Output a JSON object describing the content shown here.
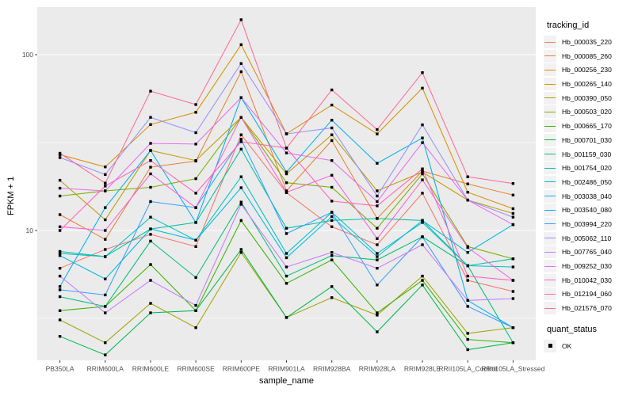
{
  "chart_data": {
    "type": "line",
    "title": "",
    "xlabel": "sample_name",
    "ylabel": "FPKM + 1",
    "y_scale": "log10",
    "ylim": [
      1.8,
      190
    ],
    "y_major_ticks": [
      10,
      100
    ],
    "y_major_tick_labels": [
      "10",
      "100"
    ],
    "y_minor_gridlines": [
      3.162,
      31.62
    ],
    "grid": "on",
    "legend_position": "right",
    "panel_background": "#EBEBEB",
    "gridline_color": "#FFFFFF",
    "axis_text_color": "#4D4D4D",
    "tick_color": "#333333",
    "point_color": "#000000",
    "point_shape": "square",
    "categories": [
      "PB350LA",
      "RRIM600LA",
      "RRIM600LE",
      "RRIM600SE",
      "RRIM600PE",
      "RRIM901LA",
      "RRIM928BA",
      "RRIM928LA",
      "RRIM928LE",
      "RRII105LA_Control",
      "RRII105LA_Stressed"
    ],
    "series": [
      {
        "name": "Hb_000035_220",
        "color": "#F8766D",
        "values": [
          6.1,
          7.8,
          9.5,
          8.1,
          35,
          16.4,
          10.5,
          8.3,
          16.3,
          5.2,
          4.5
        ]
      },
      {
        "name": "Hb_000085_260",
        "color": "#EA8331",
        "values": [
          12.3,
          8.9,
          22.9,
          24.8,
          80,
          16.8,
          32.5,
          11.7,
          21.8,
          18.4,
          15.9
        ]
      },
      {
        "name": "Hb_000256_230",
        "color": "#D89000",
        "values": [
          27,
          23,
          40,
          47,
          114,
          35.5,
          51.7,
          35.4,
          64.5,
          16.5,
          13.3
        ]
      },
      {
        "name": "Hb_000265_140",
        "color": "#C09B00",
        "values": [
          19.3,
          11.5,
          28.5,
          25,
          44,
          21,
          35,
          16.8,
          21.5,
          14.9,
          12.5
        ]
      },
      {
        "name": "Hb_000390_050",
        "color": "#A3A500",
        "values": [
          3.1,
          2.3,
          3.85,
          2.8,
          7.5,
          3.2,
          4.15,
          3.3,
          5.5,
          2.6,
          2.8
        ]
      },
      {
        "name": "Hb_000503_020",
        "color": "#7CAE00",
        "values": [
          15.7,
          16.8,
          17.6,
          19.7,
          44,
          18.7,
          17.6,
          10.3,
          21,
          8.1,
          6.9
        ]
      },
      {
        "name": "Hb_000665_170",
        "color": "#39B600",
        "values": [
          3.5,
          3.7,
          6.4,
          3.5,
          11.4,
          5.0,
          6.8,
          3.4,
          5.2,
          2.4,
          2.3
        ]
      },
      {
        "name": "Hb_000701_030",
        "color": "#00BB4E",
        "values": [
          2.5,
          1.96,
          3.4,
          3.5,
          7.8,
          3.2,
          4.8,
          2.65,
          4.9,
          2.1,
          2.3
        ]
      },
      {
        "name": "Hb_001159_030",
        "color": "#00BF7D",
        "values": [
          4.2,
          3.7,
          8.7,
          5.4,
          14.5,
          5.5,
          7.2,
          6.8,
          9.2,
          6.3,
          2.3
        ]
      },
      {
        "name": "Hb_001754_020",
        "color": "#00C1A3",
        "values": [
          7.6,
          7.1,
          10.2,
          11.1,
          29,
          10.3,
          11.4,
          11.7,
          11.4,
          6.3,
          6.9
        ]
      },
      {
        "name": "Hb_002486_050",
        "color": "#00BFC4",
        "values": [
          7.4,
          7.1,
          11.9,
          8.8,
          20.2,
          7.4,
          12.7,
          7.4,
          11.1,
          6.3,
          6.2
        ]
      },
      {
        "name": "Hb_003038_040",
        "color": "#00BAE0",
        "values": [
          7.2,
          5.3,
          10.2,
          8.8,
          17.5,
          7.0,
          12.0,
          7.1,
          11.4,
          7.5,
          10.8
        ]
      },
      {
        "name": "Hb_003540_080",
        "color": "#00B0F6",
        "values": [
          4.8,
          13.5,
          28.5,
          11.1,
          57,
          21.5,
          42.4,
          24.1,
          33.6,
          4.0,
          2.8
        ]
      },
      {
        "name": "Hb_003994_220",
        "color": "#35A2FF",
        "values": [
          4.6,
          4.3,
          14.6,
          13.5,
          33,
          9.6,
          12.7,
          4.9,
          9.2,
          3.7,
          2.8
        ]
      },
      {
        "name": "Hb_005062_110",
        "color": "#9590FF",
        "values": [
          26,
          20.8,
          44,
          36,
          89,
          35.4,
          38.3,
          15.7,
          39.9,
          14.9,
          11.9
        ]
      },
      {
        "name": "Hb_007765_040",
        "color": "#C77CFF",
        "values": [
          5.5,
          3.4,
          5.2,
          3.75,
          14.1,
          6.2,
          7.5,
          6.1,
          8.3,
          4.0,
          4.1
        ]
      },
      {
        "name": "Hb_009252_030",
        "color": "#E76BF3",
        "values": [
          17.4,
          16.8,
          31.3,
          31,
          57,
          27.6,
          25,
          14.6,
          31.6,
          14.9,
          10.8
        ]
      },
      {
        "name": "Hb_010042_030",
        "color": "#FA62DB",
        "values": [
          10.5,
          10,
          21,
          13.5,
          44,
          16.5,
          20.6,
          9.0,
          19.4,
          8.0,
          5.2
        ]
      },
      {
        "name": "Hb_012194_060",
        "color": "#FF62BC",
        "values": [
          10,
          17.9,
          25,
          16.3,
          32,
          29.4,
          14.7,
          13.8,
          22.4,
          5.5,
          5.2
        ]
      },
      {
        "name": "Hb_021576_070",
        "color": "#FF6A98",
        "values": [
          27.5,
          18.6,
          62,
          52,
          158,
          29.4,
          63,
          37.5,
          79,
          20.2,
          18.5
        ]
      }
    ],
    "legend": {
      "tracking_title": "tracking_id",
      "quant_title": "quant_status",
      "quant_items": [
        {
          "label": "OK",
          "color": "#000000"
        }
      ],
      "key_background": "#F2F2F2"
    }
  }
}
